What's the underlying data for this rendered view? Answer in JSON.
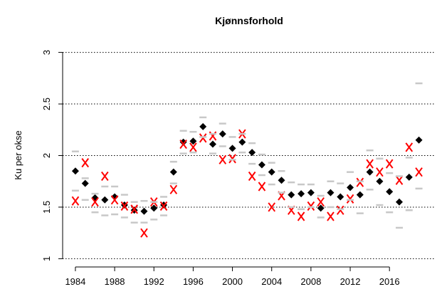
{
  "chart_data": {
    "type": "scatter",
    "title": "Kjønnsforhold",
    "y_label": "Ku per okse",
    "x": [
      1984,
      1985,
      1986,
      1987,
      1988,
      1989,
      1990,
      1991,
      1992,
      1993,
      1994,
      1995,
      1996,
      1997,
      1998,
      1999,
      2000,
      2001,
      2002,
      2003,
      2004,
      2005,
      2006,
      2007,
      2008,
      2009,
      2010,
      2011,
      2012,
      2013,
      2014,
      2015,
      2016,
      2017,
      2018,
      2019
    ],
    "series": [
      {
        "color": "#000000",
        "marker": "diamond",
        "values": [
          1.85,
          1.73,
          1.59,
          1.57,
          1.6,
          1.52,
          1.47,
          1.46,
          1.49,
          1.52,
          1.84,
          2.13,
          2.14,
          2.28,
          2.11,
          2.21,
          2.07,
          2.13,
          2.03,
          1.91,
          1.84,
          1.76,
          1.62,
          1.63,
          1.64,
          1.49,
          1.64,
          1.6,
          1.69,
          1.62,
          1.84,
          1.75,
          1.65,
          1.55,
          1.79,
          2.15
        ]
      },
      {
        "color": "#ff0000",
        "marker": "x",
        "values": [
          1.56,
          1.93,
          1.55,
          1.8,
          1.57,
          1.51,
          1.48,
          1.25,
          1.55,
          1.51,
          1.67,
          2.11,
          2.08,
          2.17,
          2.19,
          1.96,
          1.97,
          2.21,
          1.8,
          1.7,
          1.5,
          1.61,
          1.47,
          1.41,
          1.51,
          1.55,
          1.41,
          1.47,
          1.58,
          1.74,
          1.92,
          1.84,
          1.92,
          1.76,
          2.08,
          1.84
        ]
      },
      {
        "color": "#c8c8c8",
        "marker": "dash",
        "values": [
          2.04,
          1.78,
          1.63,
          1.7,
          1.7,
          1.62,
          1.55,
          1.56,
          1.55,
          1.6,
          1.94,
          2.24,
          2.23,
          2.37,
          2.21,
          2.31,
          2.18,
          2.21,
          2.12,
          2.01,
          1.93,
          1.85,
          1.74,
          1.72,
          1.72,
          1.61,
          1.75,
          1.73,
          1.84,
          1.75,
          2.05,
          1.97,
          1.83,
          1.8,
          1.98,
          2.7
        ]
      },
      {
        "color": "#c8c8c8",
        "marker": "dash",
        "values": [
          1.66,
          1.57,
          1.45,
          1.42,
          1.43,
          1.4,
          1.35,
          1.35,
          1.38,
          1.42,
          1.73,
          2.02,
          2.03,
          2.18,
          2.02,
          2.09,
          1.96,
          2.03,
          1.92,
          1.81,
          1.72,
          1.64,
          1.5,
          1.48,
          1.5,
          1.4,
          1.5,
          1.48,
          1.57,
          1.44,
          1.67,
          1.52,
          1.45,
          1.3,
          1.47,
          1.68
        ]
      }
    ],
    "xlim": [
      1982.7,
      2020.7
    ],
    "xticks": [
      1984,
      1988,
      1992,
      1996,
      2000,
      2004,
      2008,
      2012,
      2016
    ],
    "ylim": [
      0.92,
      3.08
    ],
    "yticks": [
      1,
      1.5,
      2,
      2.5,
      3
    ],
    "grid": true
  }
}
